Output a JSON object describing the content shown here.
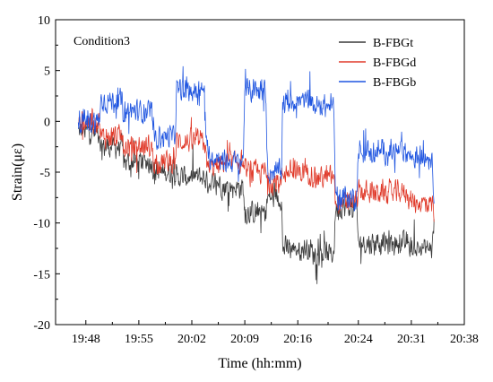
{
  "chart_data": {
    "type": "line",
    "title": "",
    "annotation": "Condition3",
    "xlabel": "Time (hh:mm)",
    "ylabel": "Strain(με)",
    "x_ticks": [
      "19:48",
      "19:55",
      "20:02",
      "20:09",
      "20:16",
      "20:24",
      "20:31",
      "20:38"
    ],
    "x_range": [
      "19:44",
      "20:38"
    ],
    "x_data_range": [
      "19:47",
      "20:34"
    ],
    "y_ticks": [
      -20,
      -15,
      -10,
      -5,
      0,
      5,
      10
    ],
    "ylim": [
      -20,
      10
    ],
    "grid": false,
    "legend_position": "top-right",
    "noise_amplitude": 1.4,
    "series": [
      {
        "name": "B-FBGt",
        "color": "#3a3a3a",
        "levels": [
          {
            "time": "19:47",
            "value": -1.0
          },
          {
            "time": "19:50",
            "value": -2.5
          },
          {
            "time": "19:53",
            "value": -4.0
          },
          {
            "time": "19:57",
            "value": -5.0
          },
          {
            "time": "20:00",
            "value": -5.5
          },
          {
            "time": "20:04",
            "value": -6.0
          },
          {
            "time": "20:06",
            "value": -6.5
          },
          {
            "time": "20:09",
            "value": -9.0
          },
          {
            "time": "20:12",
            "value": -7.5
          },
          {
            "time": "20:14",
            "value": -12.5
          },
          {
            "time": "20:18",
            "value": -13.0
          },
          {
            "time": "20:21",
            "value": -8.5
          },
          {
            "time": "20:24",
            "value": -12.0
          },
          {
            "time": "20:31",
            "value": -12.5
          },
          {
            "time": "20:34",
            "value": -10.0
          }
        ]
      },
      {
        "name": "B-FBGd",
        "color": "#e03a2a",
        "levels": [
          {
            "time": "19:47",
            "value": 0.0
          },
          {
            "time": "19:50",
            "value": -1.5
          },
          {
            "time": "19:53",
            "value": -2.5
          },
          {
            "time": "19:57",
            "value": -4.0
          },
          {
            "time": "20:00",
            "value": -2.0
          },
          {
            "time": "20:04",
            "value": -4.5
          },
          {
            "time": "20:06",
            "value": -4.0
          },
          {
            "time": "20:09",
            "value": -5.0
          },
          {
            "time": "20:12",
            "value": -6.0
          },
          {
            "time": "20:14",
            "value": -5.0
          },
          {
            "time": "20:18",
            "value": -5.5
          },
          {
            "time": "20:21",
            "value": -8.0
          },
          {
            "time": "20:24",
            "value": -7.0
          },
          {
            "time": "20:31",
            "value": -8.0
          },
          {
            "time": "20:34",
            "value": -9.0
          }
        ]
      },
      {
        "name": "B-FBGb",
        "color": "#1f55e0",
        "levels": [
          {
            "time": "19:47",
            "value": 0.0
          },
          {
            "time": "19:50",
            "value": 2.0
          },
          {
            "time": "19:53",
            "value": 1.0
          },
          {
            "time": "19:57",
            "value": -1.5
          },
          {
            "time": "20:00",
            "value": 3.0
          },
          {
            "time": "20:04",
            "value": -3.5
          },
          {
            "time": "20:06",
            "value": -4.0
          },
          {
            "time": "20:09",
            "value": 3.0
          },
          {
            "time": "20:12",
            "value": -5.0
          },
          {
            "time": "20:14",
            "value": 2.0
          },
          {
            "time": "20:18",
            "value": 1.5
          },
          {
            "time": "20:21",
            "value": -7.5
          },
          {
            "time": "20:24",
            "value": -3.0
          },
          {
            "time": "20:31",
            "value": -3.5
          },
          {
            "time": "20:34",
            "value": -8.0
          }
        ]
      }
    ]
  }
}
